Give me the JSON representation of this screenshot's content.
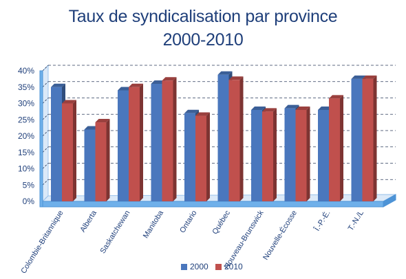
{
  "chart_data": {
    "type": "bar",
    "title": "Taux de syndicalisation par province",
    "subtitle": "2000-2010",
    "xlabel": "",
    "ylabel": "",
    "ylim": [
      0,
      40
    ],
    "yticks": [
      "0%",
      "5%",
      "10%",
      "15%",
      "20%",
      "25%",
      "30%",
      "35%",
      "40%"
    ],
    "grid": true,
    "legend_position": "bottom",
    "categories": [
      "Colombie-Britannique",
      "Alberta",
      "Saskatchewan",
      "Manitoba",
      "Ontario",
      "Québec",
      "Nouveau-Brunswick",
      "Nouvelle-Écosse",
      "Î.-P.-É.",
      "T.-N./L"
    ],
    "series": [
      {
        "name": "2000",
        "color": "#4a77bd",
        "values": [
          35.0,
          22.0,
          34.0,
          36.0,
          27.0,
          38.8,
          28.0,
          28.5,
          28.0,
          37.5
        ]
      },
      {
        "name": "2010",
        "color": "#c0504d",
        "values": [
          30.0,
          24.2,
          35.0,
          37.0,
          26.2,
          37.2,
          27.5,
          28.0,
          31.5,
          37.5
        ]
      }
    ]
  }
}
